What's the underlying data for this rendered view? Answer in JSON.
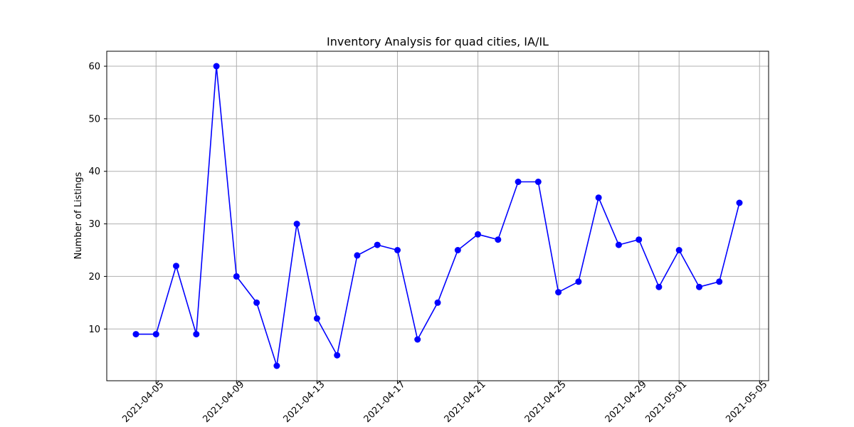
{
  "chart_data": {
    "type": "line",
    "title": "Inventory Analysis for quad cities, IA/IL",
    "xlabel": "",
    "ylabel": "Number of Listings",
    "x": [
      "2021-04-04",
      "2021-04-05",
      "2021-04-06",
      "2021-04-07",
      "2021-04-08",
      "2021-04-09",
      "2021-04-10",
      "2021-04-11",
      "2021-04-12",
      "2021-04-13",
      "2021-04-14",
      "2021-04-15",
      "2021-04-16",
      "2021-04-17",
      "2021-04-18",
      "2021-04-19",
      "2021-04-20",
      "2021-04-21",
      "2021-04-22",
      "2021-04-23",
      "2021-04-24",
      "2021-04-25",
      "2021-04-26",
      "2021-04-27",
      "2021-04-28",
      "2021-04-29",
      "2021-04-30",
      "2021-05-01",
      "2021-05-02",
      "2021-05-03",
      "2021-05-04"
    ],
    "series": [
      {
        "values": [
          9,
          9,
          22,
          9,
          60,
          20,
          15,
          3,
          30,
          12,
          5,
          24,
          26,
          25,
          8,
          15,
          25,
          28,
          27,
          38,
          38,
          17,
          19,
          35,
          26,
          27,
          18,
          25,
          18,
          19,
          34
        ],
        "color": "#0000ff",
        "marker": "circle"
      }
    ],
    "xticks": [
      "2021-04-05",
      "2021-04-09",
      "2021-04-13",
      "2021-04-17",
      "2021-04-21",
      "2021-04-25",
      "2021-04-29",
      "2021-05-01",
      "2021-05-05"
    ],
    "yticks": [
      10,
      20,
      30,
      40,
      50,
      60
    ],
    "xlim": [
      "2021-04-02.55",
      "2021-05-05.45"
    ],
    "ylim": [
      0.15,
      62.85
    ],
    "grid": true,
    "legend": "none"
  }
}
